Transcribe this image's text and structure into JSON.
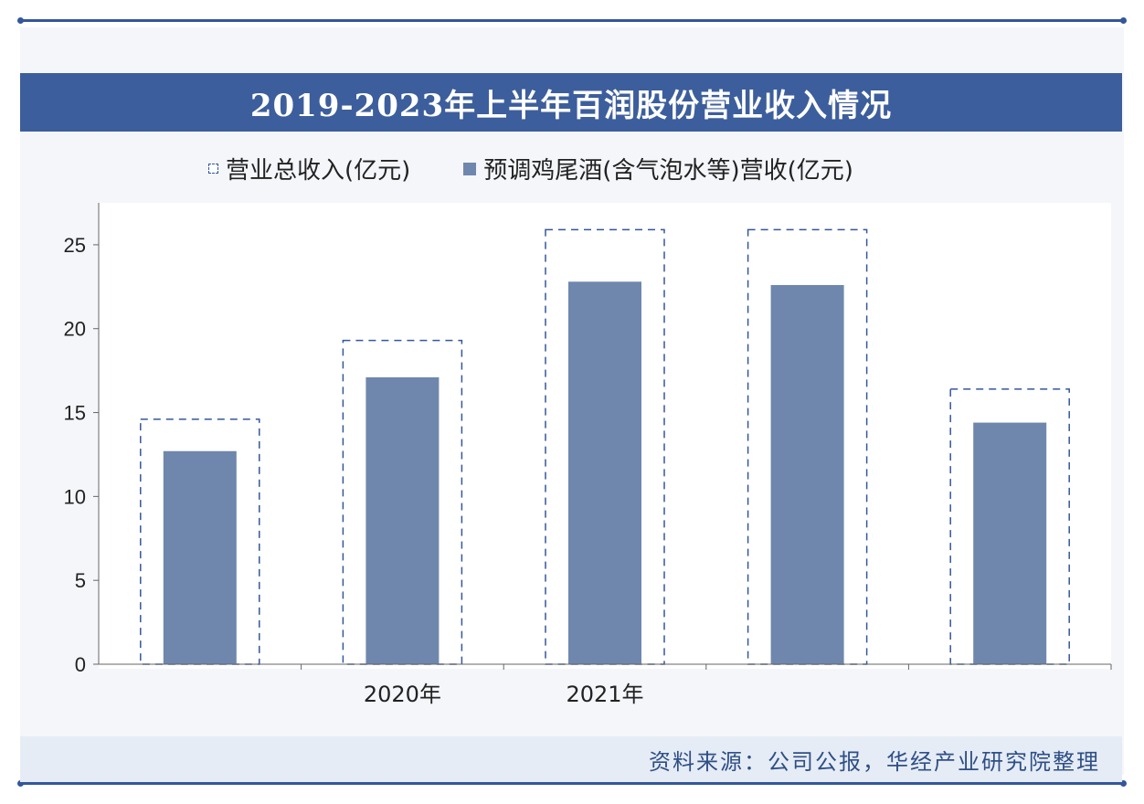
{
  "title": "2019-2023年上半年百润股份营业收入情况",
  "source": "资料来源：公司公报，华经产业研究院整理",
  "colors": {
    "primary": "#3d5e9c",
    "bar": "#6f87ad",
    "outline": "#34579a"
  },
  "chart_data": {
    "type": "bar",
    "categories": [
      "",
      "2020年",
      "2021年",
      "",
      ""
    ],
    "series": [
      {
        "name": "营业总收入(亿元)",
        "style": "dashed-outline",
        "values": [
          14.6,
          19.3,
          25.9,
          25.9,
          16.4
        ]
      },
      {
        "name": "预调鸡尾酒(含气泡水等)营收(亿元)",
        "style": "filled",
        "values": [
          12.7,
          17.1,
          22.8,
          22.6,
          14.4
        ]
      }
    ],
    "yticks": [
      0,
      5,
      10,
      15,
      20,
      25
    ],
    "ylim": [
      0,
      27.5
    ],
    "grid": false,
    "legend": "top"
  }
}
